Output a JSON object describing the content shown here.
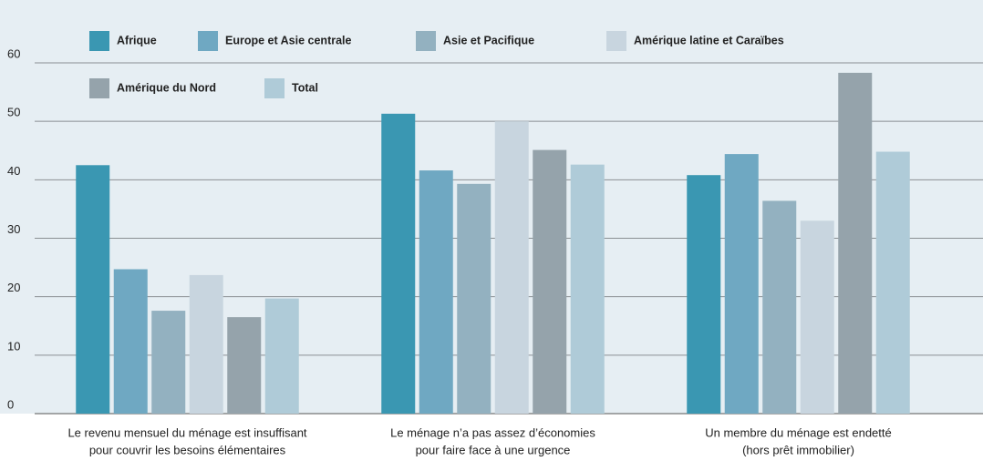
{
  "chart_data": {
    "type": "bar",
    "categories": [
      [
        "Le revenu mensuel du ménage est insuffisant",
        "pour couvrir les besoins élémentaires"
      ],
      [
        "Le ménage n’a pas assez d’économies",
        "pour faire face à une urgence"
      ],
      [
        "Un membre du ménage est endetté",
        "(hors prêt immobilier)"
      ]
    ],
    "series": [
      {
        "name": "Afrique",
        "color": "#3a97b2",
        "values": [
          42.5,
          51.3,
          40.8
        ]
      },
      {
        "name": "Europe et Asie centrale",
        "color": "#6fa8c2",
        "values": [
          24.7,
          41.6,
          44.4
        ]
      },
      {
        "name": "Asie et Pacifique",
        "color": "#93b1c0",
        "values": [
          17.6,
          39.3,
          36.4
        ]
      },
      {
        "name": "Amérique latine et Caraïbes",
        "color": "#c8d5df",
        "values": [
          23.7,
          50,
          33
        ]
      },
      {
        "name": "Amérique du Nord",
        "color": "#95a3ab",
        "values": [
          16.5,
          45.1,
          58.3
        ]
      },
      {
        "name": "Total",
        "color": "#afcbd8",
        "values": [
          19.7,
          42.6,
          44.8
        ]
      }
    ],
    "ylim": [
      0,
      60
    ],
    "yticks": [
      0,
      10,
      20,
      30,
      40,
      50,
      60
    ],
    "grid": true,
    "legend": "top-left"
  }
}
